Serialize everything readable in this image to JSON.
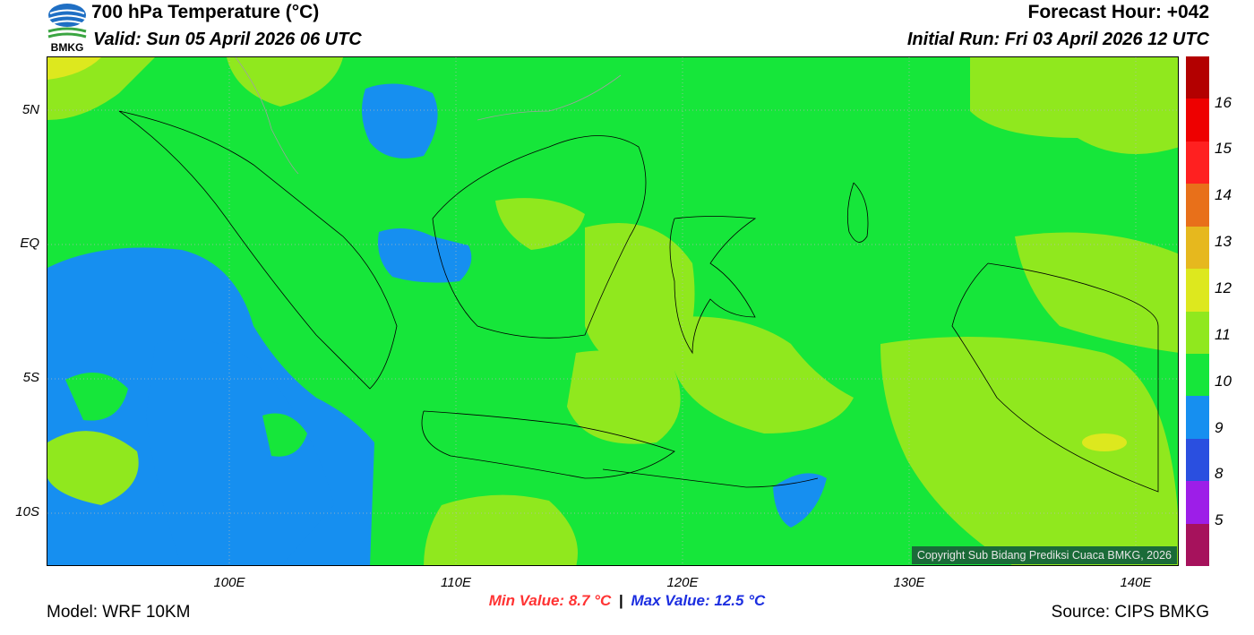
{
  "header": {
    "title": "700 hPa Temperature (°C)",
    "valid": "Valid: Sun 05 April 2026 06 UTC",
    "forecast_hour": "Forecast Hour: +042",
    "initial_run": "Initial Run: Fri 03 April 2026 12 UTC"
  },
  "logo": {
    "text": "BMKG",
    "icon": "bmkg-logo-icon"
  },
  "axes": {
    "lat_labels": [
      "5N",
      "EQ",
      "5S",
      "10S"
    ],
    "lon_labels": [
      "100E",
      "110E",
      "120E",
      "130E",
      "140E"
    ]
  },
  "colorbar": {
    "labels": [
      "16",
      "15",
      "14",
      "13",
      "12",
      "11",
      "10",
      "9",
      "8",
      "5"
    ],
    "colors": [
      "#b30000",
      "#ee0000",
      "#ff2020",
      "#e8701a",
      "#e6b81e",
      "#dde81e",
      "#90e81e",
      "#16e63a",
      "#168ff0",
      "#2a4fe0",
      "#9d1ee8",
      "#a6125c"
    ]
  },
  "stats": {
    "min": "Min Value: 8.7 °C",
    "separator": "|",
    "max": "Max Value: 12.5 °C",
    "min_color": "#ff3333",
    "max_color": "#1c2ee0"
  },
  "copyright": "Copyright Sub Bidang Prediksi Cuaca BMKG, 2026",
  "footer": {
    "model": "Model: WRF 10KM",
    "source": "Source: CIPS BMKG"
  }
}
